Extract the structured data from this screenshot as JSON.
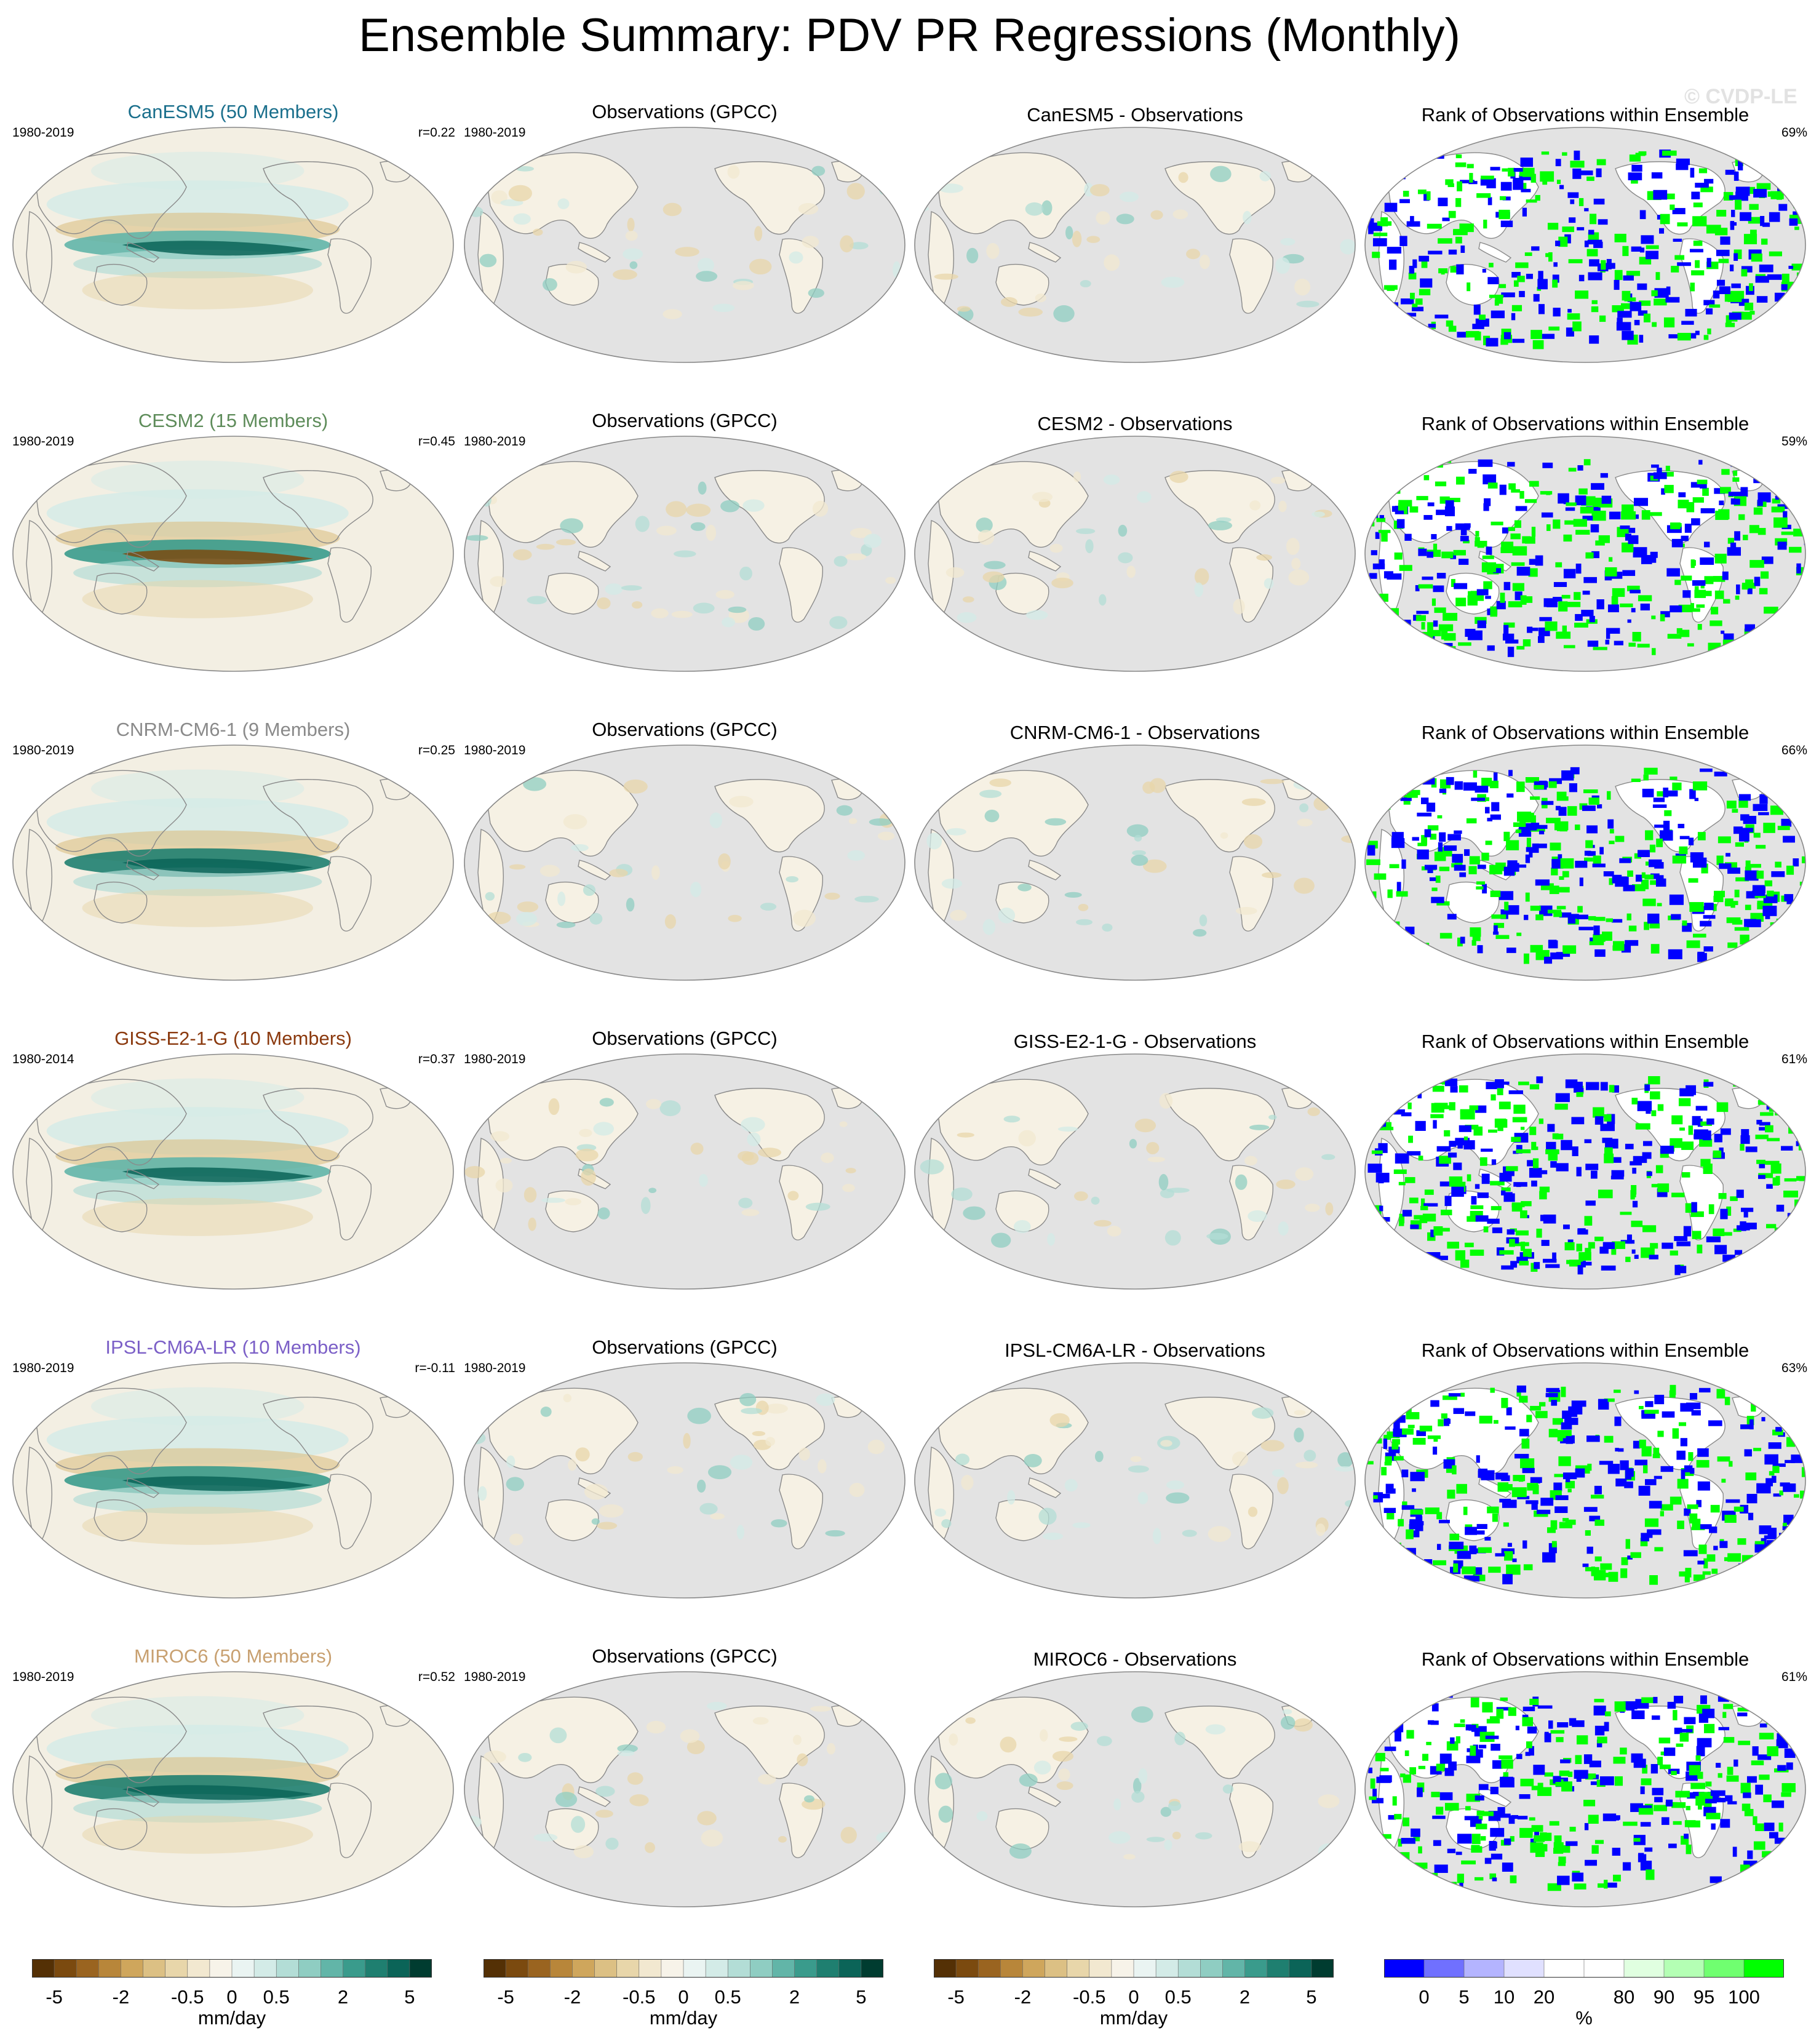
{
  "title": "Ensemble Summary: PDV PR Regressions (Monthly)",
  "watermark": "© CVDP-LE",
  "column_titles": {
    "observations": "Observations (GPCC)",
    "difference_suffix": " - Observations",
    "rank": "Rank of Observations within Ensemble"
  },
  "rows": [
    {
      "model_title": "CanESM5 (50 Members)",
      "model_name": "CanESM5",
      "color": "#1a6f8c",
      "model_period": "1980-2019",
      "r": "r=0.22",
      "obs_period": "1980-2019",
      "rank_pct": "69%"
    },
    {
      "model_title": "CESM2 (15 Members)",
      "model_name": "CESM2",
      "color": "#5e8c5a",
      "model_period": "1980-2019",
      "r": "r=0.45",
      "obs_period": "1980-2019",
      "rank_pct": "59%"
    },
    {
      "model_title": "CNRM-CM6-1 (9 Members)",
      "model_name": "CNRM-CM6-1",
      "color": "#8a8a8a",
      "model_period": "1980-2019",
      "r": "r=0.25",
      "obs_period": "1980-2019",
      "rank_pct": "66%"
    },
    {
      "model_title": "GISS-E2-1-G (10 Members)",
      "model_name": "GISS-E2-1-G",
      "color": "#8b3a0f",
      "model_period": "1980-2014",
      "r": "r=0.37",
      "obs_period": "1980-2019",
      "rank_pct": "61%"
    },
    {
      "model_title": "IPSL-CM6A-LR (10 Members)",
      "model_name": "IPSL-CM6A-LR",
      "color": "#7b5fc7",
      "model_period": "1980-2019",
      "r": "r=-0.11",
      "obs_period": "1980-2019",
      "rank_pct": "63%"
    },
    {
      "model_title": "MIROC6 (50 Members)",
      "model_name": "MIROC6",
      "color": "#c8a070",
      "model_period": "1980-2019",
      "r": "r=0.52",
      "obs_period": "1980-2019",
      "rank_pct": "61%"
    }
  ],
  "colorbars": {
    "regression": {
      "colors": [
        "#543005",
        "#7b4a0f",
        "#9a6420",
        "#b8863a",
        "#cfa65c",
        "#dcc084",
        "#e8d6aa",
        "#f2e8d0",
        "#f7f3e9",
        "#eaf4f2",
        "#d3ebe7",
        "#b3ddd6",
        "#8fcdc2",
        "#62b5a8",
        "#3a9b8c",
        "#1f7f70",
        "#0b6458",
        "#003c30"
      ],
      "tick_labels": [
        "-5",
        "-2",
        "-0.5",
        "0",
        "0.5",
        "2",
        "5"
      ],
      "unit": "mm/day"
    },
    "rank": {
      "colors": [
        "#0000ff",
        "#7070ff",
        "#b4b4ff",
        "#e0e0ff",
        "#ffffff",
        "#ffffff",
        "#e0ffe0",
        "#b4ffb4",
        "#70ff70",
        "#00ff00"
      ],
      "tick_labels": [
        "0",
        "5",
        "10",
        "20",
        "80",
        "90",
        "95",
        "100"
      ],
      "unit": "%"
    }
  },
  "map_colors": {
    "land_gray": "#e3e3e3",
    "coastline": "#8a8a8a",
    "ocean_neutral": "#f3efe3",
    "rank_blue": "#0000ff",
    "rank_green": "#00ff00"
  }
}
